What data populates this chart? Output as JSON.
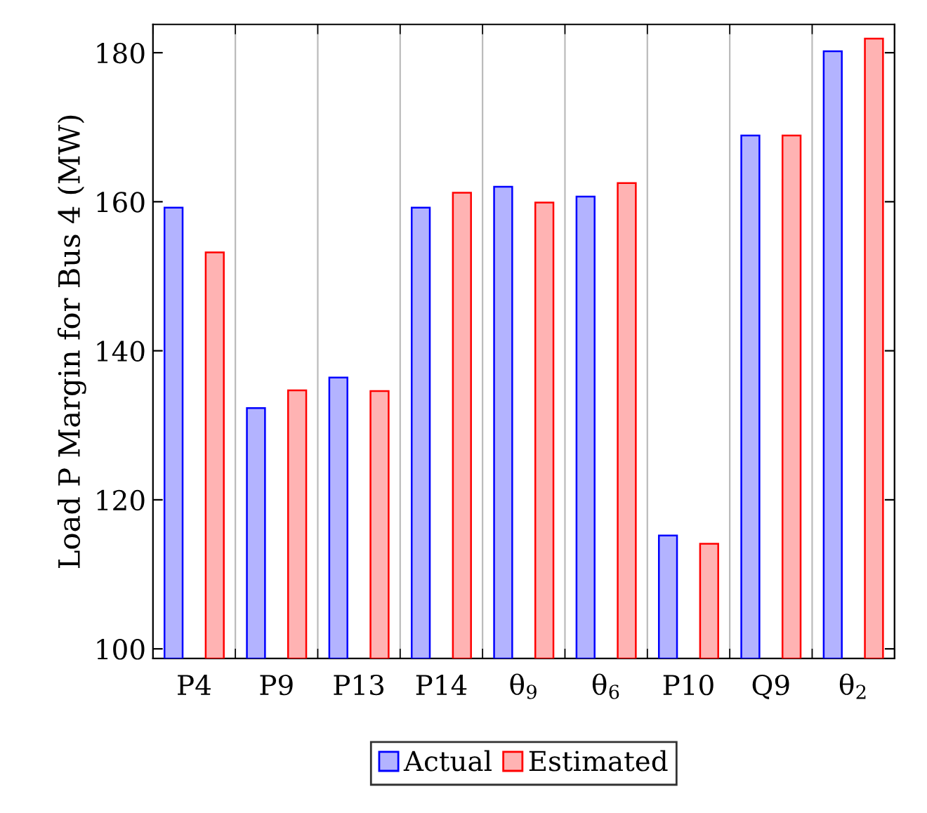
{
  "chart_data": {
    "type": "bar",
    "ylabel": "Load P Margin for Bus 4 (MW)",
    "categories": [
      "P4",
      "P9",
      "P13",
      "P14",
      "θ$_{9}$",
      "θ$_{6}$",
      "P10",
      "Q9",
      "θ$_{2}$"
    ],
    "series": [
      {
        "name": "Actual",
        "color": "#b3b3ff",
        "values": [
          159.2,
          132.3,
          136.4,
          159.2,
          162.0,
          160.7,
          115.2,
          168.9,
          180.2
        ]
      },
      {
        "name": "Estimated",
        "color": "#ffb3b3",
        "values": [
          153.2,
          134.7,
          134.6,
          161.2,
          159.9,
          162.5,
          114.1,
          168.9,
          181.9
        ]
      }
    ],
    "ylim": [
      98.7,
      183.8
    ],
    "yticks": [
      100,
      120,
      140,
      160,
      180
    ],
    "grid": "x",
    "legend": "bottom"
  }
}
